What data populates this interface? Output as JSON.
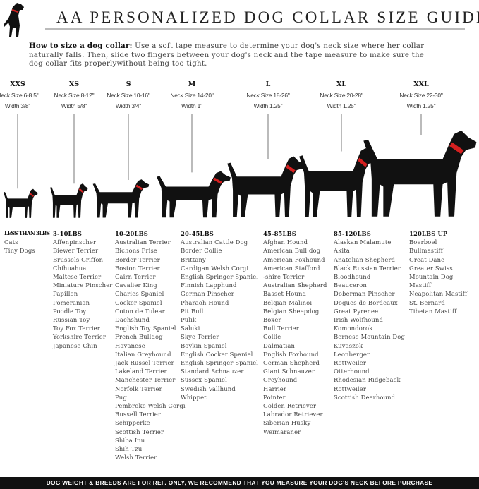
{
  "header": {
    "title": "AA PERSONALIZED DOG COLLAR SIZE GUIDE",
    "logo_icon": "dog-silhouette-red-collar"
  },
  "intro": {
    "label": "How to size a dog collar:",
    "text": " Use a soft tape measure to determine your dog's neck size where her collar naturally falls. Then, slide two fingers between your dog's neck and the tape measure to make sure the dog collar fits properlywithout being too tight."
  },
  "colors": {
    "collar": "#d42020",
    "silhouette": "#111111",
    "footer_bg": "#111111"
  },
  "sizes": [
    {
      "code": "XXS",
      "neck": "Neck Size 6-8.5\"",
      "width": "Width 3/8\""
    },
    {
      "code": "XS",
      "neck": "Neck Size 8-12\"",
      "width": "Width 5/8\""
    },
    {
      "code": "S",
      "neck": "Neck Size 10-16\"",
      "width": "Width 3/4\""
    },
    {
      "code": "M",
      "neck": "Neck Size 14-20\"",
      "width": "Width 1\""
    },
    {
      "code": "L",
      "neck": "Neck Size 18-26\"",
      "width": "Width 1.25\""
    },
    {
      "code": "XL",
      "neck": "Neck Size 20-28\"",
      "width": "Width 1.25\""
    },
    {
      "code": "XXL",
      "neck": "Neck Size 22-30\"",
      "width": "Width 1.25\""
    }
  ],
  "columns": [
    {
      "heading": "LESS THAN 3LBS",
      "items": [
        "Cats",
        "Tiny Dogs"
      ]
    },
    {
      "heading": "3-10LBS",
      "items": [
        "Affenpinscher",
        "Biewer Terrier",
        "Brussels Griffon",
        "Chihuahua",
        "Maltese Terrier",
        "Miniature Pinscher",
        "Papillon",
        "Pomeranian",
        "Poodle Toy",
        "Russian Toy",
        "Toy Fox Terrier",
        "Yorkshire Terrier",
        "Japanese Chin"
      ]
    },
    {
      "heading": "10-20LBS",
      "items": [
        "Australian Terrier",
        "Bichons Frise",
        "Border Terrier",
        "Boston Terrier",
        "Cairn Terrier",
        "Cavalier King",
        "Charles Spaniel",
        "Cocker Spaniel",
        "Coton de Tulear",
        "Dachshund",
        "English Toy Spaniel",
        "French Bulldog",
        "Havanese",
        "Italian Greyhound",
        "Jack Russel Terrier",
        "Lakeland Terrier",
        "Manchester Terrier",
        "Norfolk Terrier",
        "Pug",
        "Pembroke Welsh Corgi",
        "Russell Terrier",
        "Schipperke",
        "Scottish Terrier",
        "Shiba Inu",
        "Shih Tzu",
        "Welsh Terrier"
      ]
    },
    {
      "heading": "20-45LBS",
      "items": [
        "Australian Cattle Dog",
        "Border Collie",
        "Brittany",
        "Cardigan Welsh Corgi",
        "English Springer Spaniel",
        "Finnish Lapphund",
        "German Pinscher",
        "Pharaoh Hound",
        "Pit Bull",
        "Pulik",
        "Saluki",
        "Skye Terrier",
        "Boykin Spaniel",
        "English Cocker Spaniel",
        "English Springer Spaniel",
        "Standard Schnauzer",
        "Sussex Spaniel",
        "Swedish Vallhund",
        "Whippet"
      ]
    },
    {
      "heading": "45-85LBS",
      "items": [
        "Afghan Hound",
        "American Bull dog",
        "American Foxhound",
        "American Stafford",
        "-shire Terrier",
        "Australian Shepherd",
        "Basset Hound",
        "Belgian Malinoi",
        "Belgian Sheepdog",
        "Boxer",
        "Bull Terrier",
        "Collie",
        "Dalmatian",
        "English Foxhound",
        "German Shepherd",
        "Giant Schnauzer",
        "Greyhound",
        "Harrier",
        "Pointer",
        "Golden Retriever",
        "Labrador Retriever",
        "Siberian Husky",
        "Weimaraner"
      ]
    },
    {
      "heading": "85-120LBS",
      "items": [
        "Alaskan Malamute",
        "Akita",
        "Anatolian Shepherd",
        "Black Russian Terrier",
        "Bloodhound",
        "Beauceron",
        "Doberman Pinscher",
        "Dogues de Bordeaux",
        "Great Pyrenee",
        "Irish Wolfhound",
        "Komondorok",
        "Bernese Mountain Dog",
        "Kuvaszok",
        "Leonberger",
        "Rottweiler",
        "Otterhound",
        "Rhodesian Ridgeback",
        "Rottweiler",
        "Scottish Deerhound"
      ]
    },
    {
      "heading": "120LBS UP",
      "items": [
        "Boerboel",
        "Bullmastiff",
        "Great Dane",
        "Greater Swiss",
        "Mountain Dog",
        "Mastiff",
        "Neapolitan Mastiff",
        "St. Bernard",
        "Tibetan Mastiff"
      ]
    }
  ],
  "footer": {
    "text": "DOG WEIGHT & BREEDS ARE FOR REF. ONLY, WE RECOMMEND THAT YOU MEASURE YOUR DOG'S NECK BEFORE PURCHASE"
  }
}
